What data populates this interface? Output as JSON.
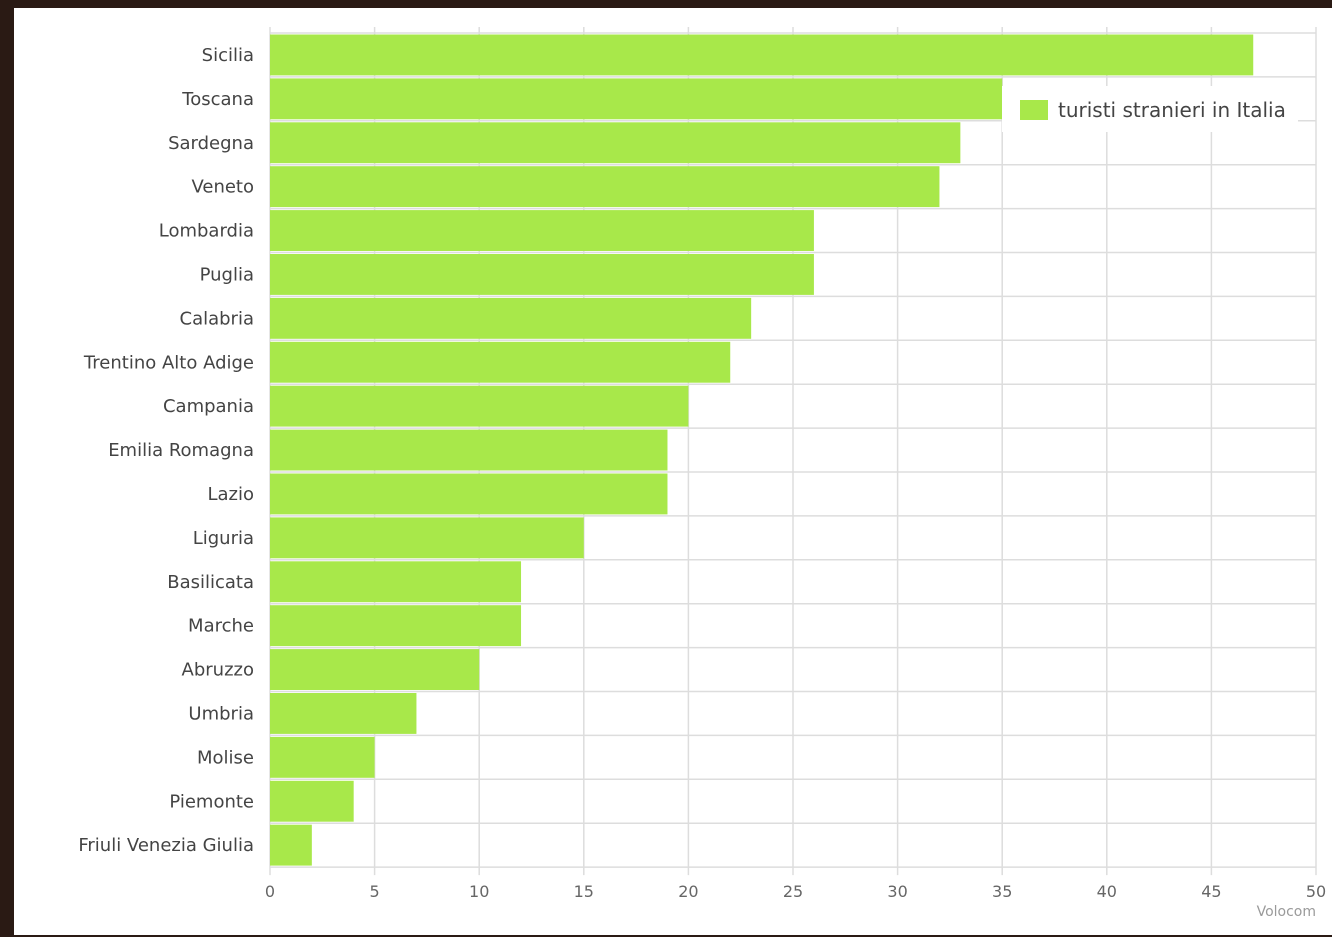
{
  "chart_data": {
    "type": "bar",
    "orientation": "horizontal",
    "categories": [
      "Sicilia",
      "Toscana",
      "Sardegna",
      "Veneto",
      "Lombardia",
      "Puglia",
      "Calabria",
      "Trentino Alto Adige",
      "Campania",
      "Emilia Romagna",
      "Lazio",
      "Liguria",
      "Basilicata",
      "Marche",
      "Abruzzo",
      "Umbria",
      "Molise",
      "Piemonte",
      "Friuli Venezia Giulia"
    ],
    "series": [
      {
        "name": "turisti stranieri in Italia",
        "values": [
          47,
          35,
          33,
          32,
          26,
          26,
          23,
          22,
          20,
          19,
          19,
          15,
          12,
          12,
          10,
          7,
          5,
          4,
          2
        ]
      }
    ],
    "x_ticks": [
      0,
      5,
      10,
      15,
      20,
      25,
      30,
      35,
      40,
      45,
      50
    ],
    "xlim": [
      0,
      50
    ],
    "grid": true,
    "legend_position": "top-right",
    "bar_color": "#a8e84a",
    "credit": "Volocom"
  }
}
